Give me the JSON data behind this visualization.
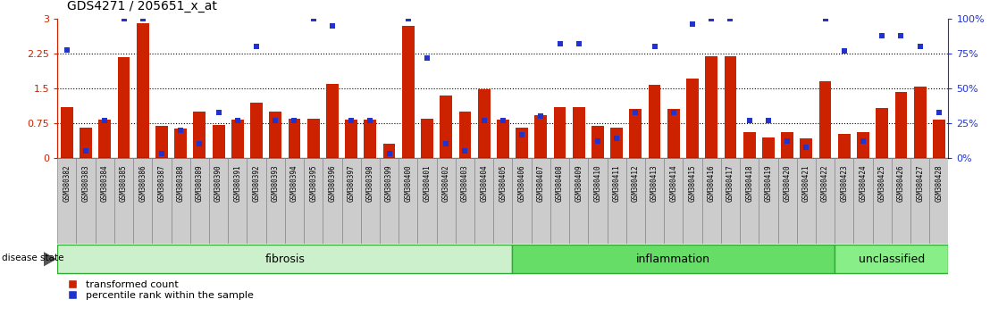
{
  "title": "GDS4271 / 205651_x_at",
  "samples": [
    "GSM380382",
    "GSM380383",
    "GSM380384",
    "GSM380385",
    "GSM380386",
    "GSM380387",
    "GSM380388",
    "GSM380389",
    "GSM380390",
    "GSM380391",
    "GSM380392",
    "GSM380393",
    "GSM380394",
    "GSM380395",
    "GSM380396",
    "GSM380397",
    "GSM380398",
    "GSM380399",
    "GSM380400",
    "GSM380401",
    "GSM380402",
    "GSM380403",
    "GSM380404",
    "GSM380405",
    "GSM380406",
    "GSM380407",
    "GSM380408",
    "GSM380409",
    "GSM380410",
    "GSM380411",
    "GSM380412",
    "GSM380413",
    "GSM380414",
    "GSM380415",
    "GSM380416",
    "GSM380417",
    "GSM380418",
    "GSM380419",
    "GSM380420",
    "GSM380421",
    "GSM380422",
    "GSM380423",
    "GSM380424",
    "GSM380425",
    "GSM380426",
    "GSM380427",
    "GSM380428"
  ],
  "bar_values": [
    1.1,
    0.65,
    0.82,
    2.18,
    2.9,
    0.7,
    0.63,
    1.0,
    0.72,
    0.82,
    1.2,
    1.0,
    0.85,
    0.85,
    1.6,
    0.82,
    0.82,
    0.3,
    2.85,
    0.85,
    1.35,
    1.0,
    1.48,
    0.82,
    0.65,
    0.92,
    1.1,
    1.1,
    0.7,
    0.65,
    1.05,
    1.58,
    1.05,
    1.72,
    2.2,
    2.2,
    0.55,
    0.45,
    0.55,
    0.42,
    1.65,
    0.52,
    0.55,
    1.08,
    1.42,
    1.55,
    0.82
  ],
  "dot_values_pct": [
    78,
    5,
    27,
    100,
    100,
    3,
    20,
    10,
    33,
    27,
    80,
    27,
    27,
    100,
    95,
    27,
    27,
    3,
    100,
    72,
    10,
    5,
    27,
    27,
    17,
    30,
    82,
    82,
    12,
    14,
    33,
    80,
    33,
    96,
    100,
    100,
    27,
    27,
    12,
    8,
    100,
    77,
    12,
    88,
    88,
    80,
    33
  ],
  "group_labels": [
    "fibrosis",
    "inflammation",
    "unclassified"
  ],
  "group_ranges": [
    [
      0,
      23
    ],
    [
      24,
      40
    ],
    [
      41,
      46
    ]
  ],
  "group_colors": [
    "#ccf0cc",
    "#66dd66",
    "#88ee88"
  ],
  "group_edge_color": "#33aa33",
  "ylim_left": [
    0,
    3.0
  ],
  "ylim_right": [
    0,
    100
  ],
  "yticks_left": [
    0,
    0.75,
    1.5,
    2.25,
    3.0
  ],
  "yticks_right": [
    0,
    25,
    50,
    75,
    100
  ],
  "hlines": [
    0.75,
    1.5,
    2.25
  ],
  "bar_color": "#cc2200",
  "dot_color": "#2233cc",
  "bar_width": 0.65,
  "xlabel_bg": "#cccccc",
  "xlabel_border": "#999999",
  "legend_red_label": "transformed count",
  "legend_blue_label": "percentile rank within the sample",
  "disease_state_label": "disease state"
}
